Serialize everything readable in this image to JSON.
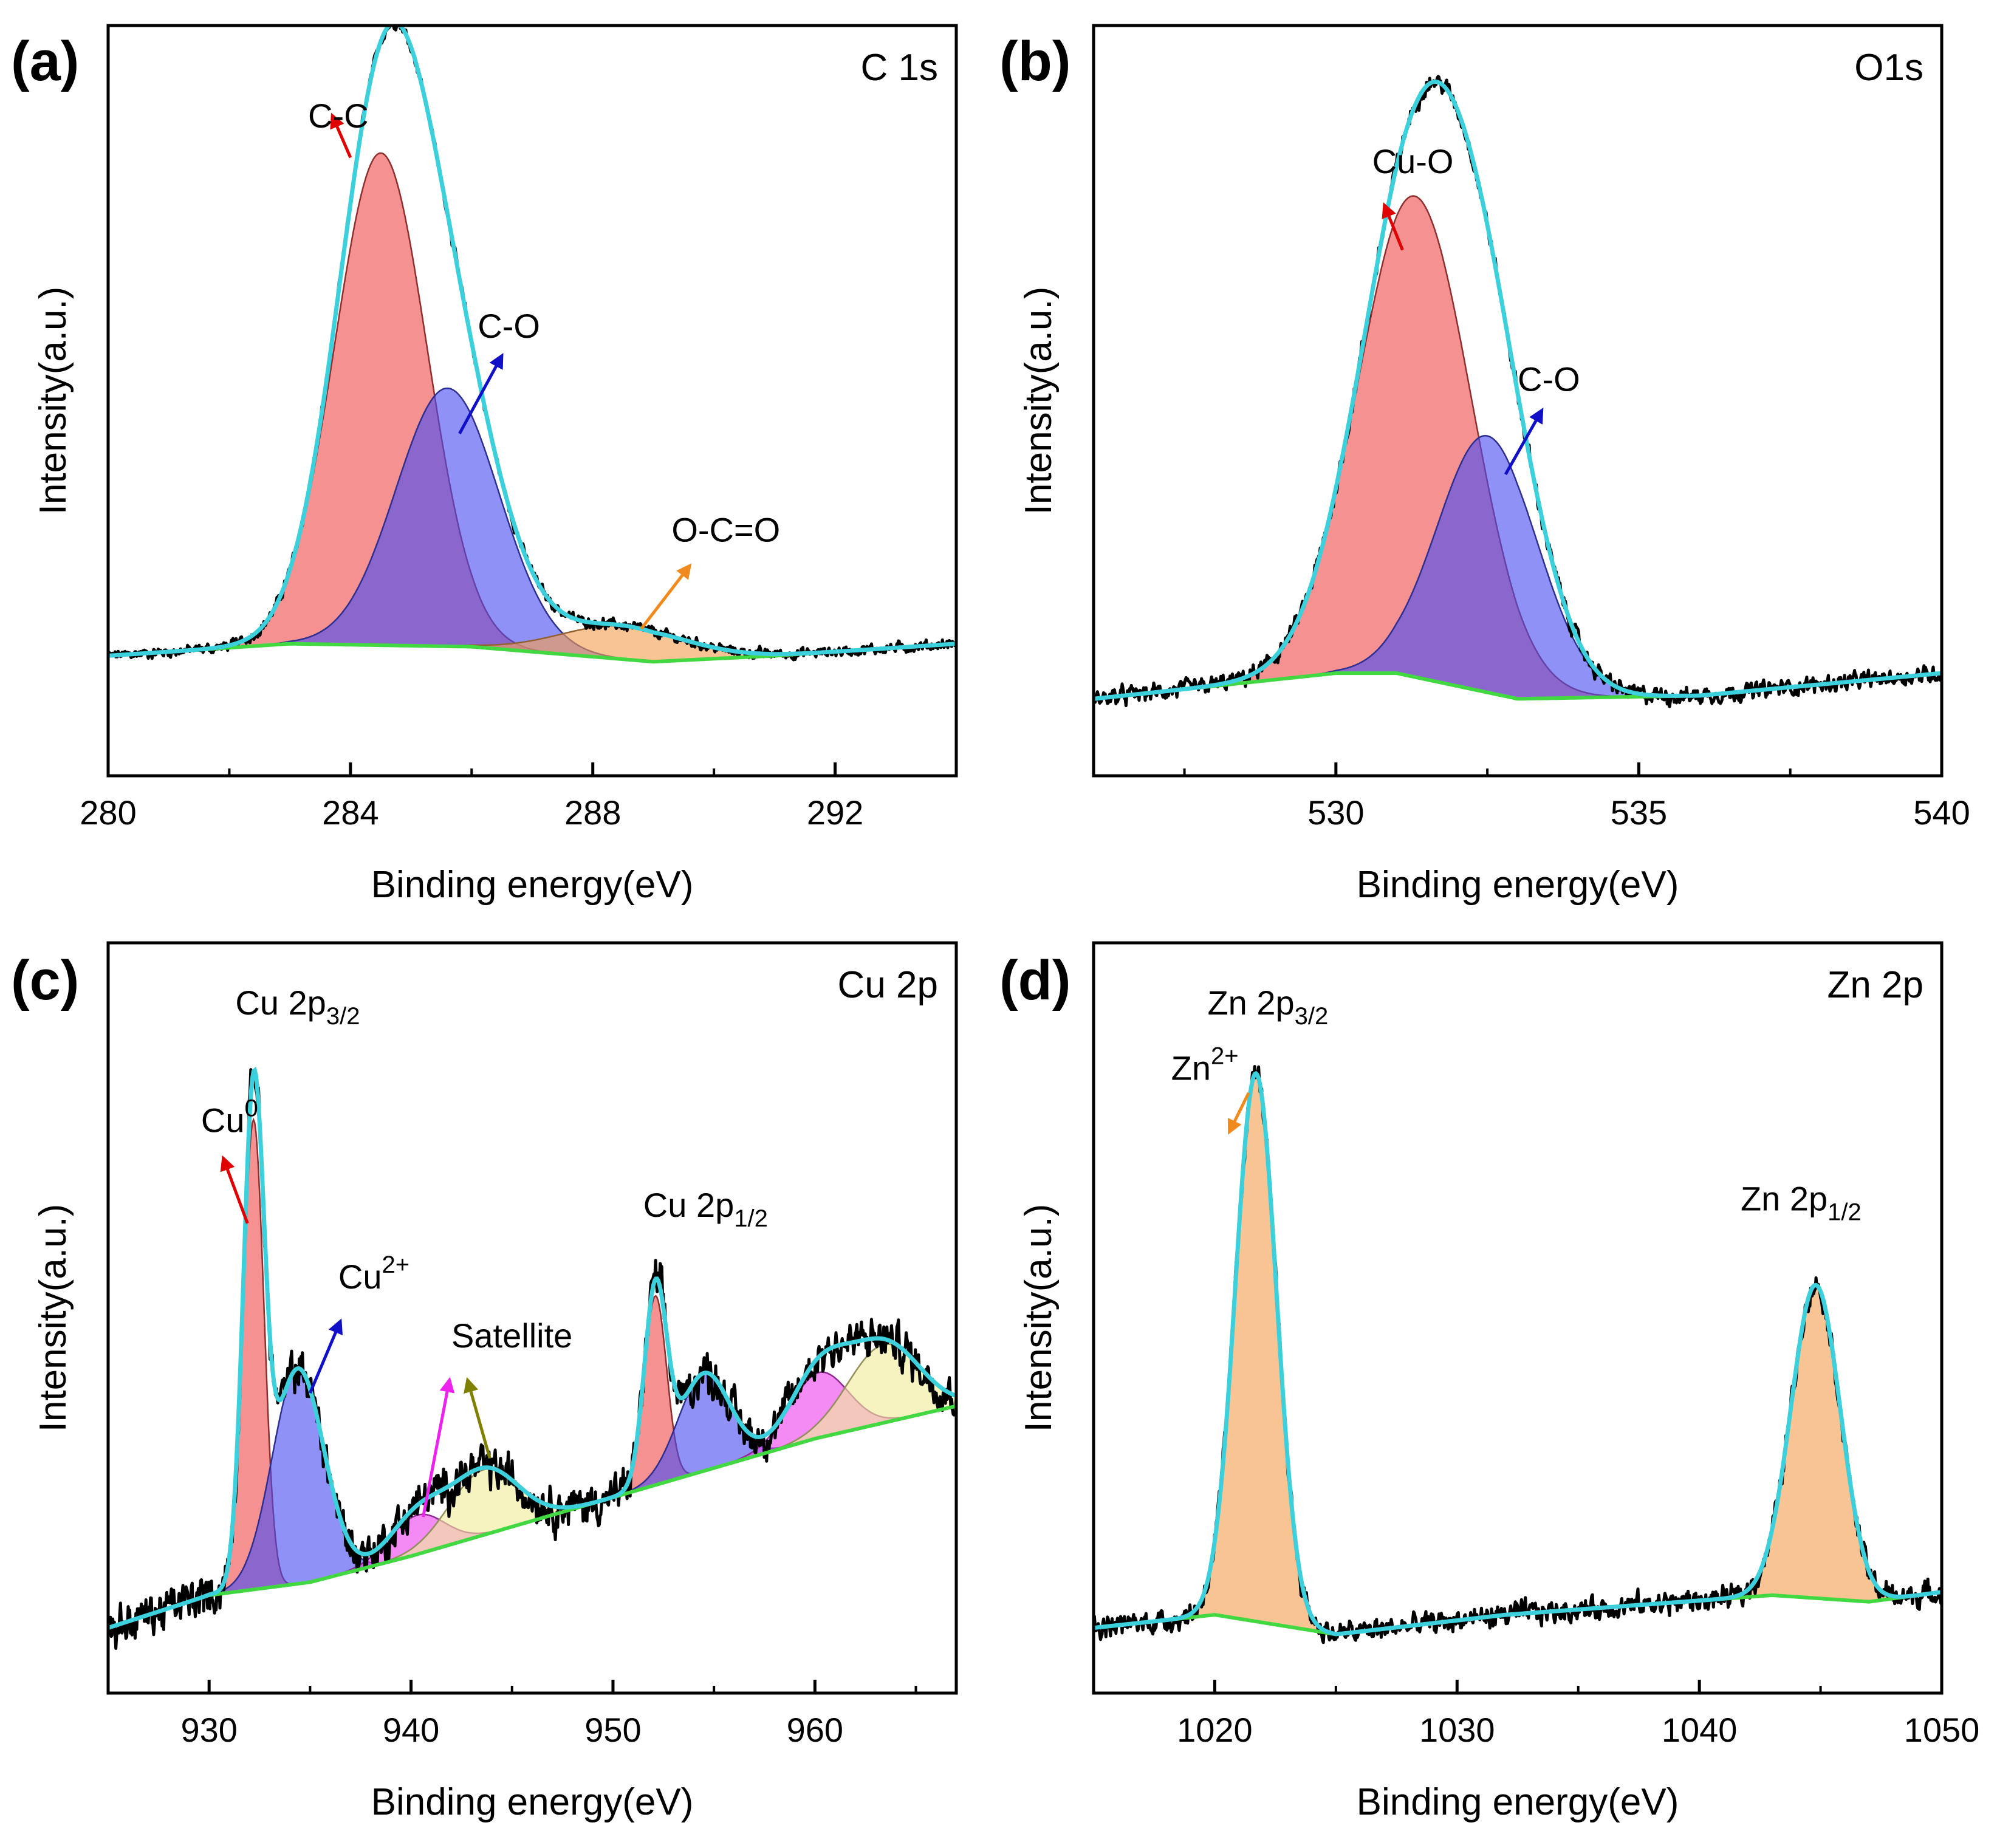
{
  "chart_data": [
    {
      "id": "a",
      "type": "area",
      "panel_label": "(a)",
      "title": "C 1s",
      "xlabel": "Binding energy(eV)",
      "ylabel": "Intensity(a.u.)",
      "xlim": [
        280,
        294
      ],
      "ylim": [
        -0.2,
        1.05
      ],
      "xticks": [
        280,
        284,
        288,
        292
      ],
      "xtick_labels": [
        "280",
        "284",
        "288",
        "292"
      ],
      "minor_xticks": [
        282,
        286,
        290,
        294
      ],
      "background": {
        "x": [
          280,
          283,
          286,
          289,
          291,
          294
        ],
        "y": [
          0.0,
          0.02,
          0.015,
          -0.01,
          0.0,
          0.02
        ]
      },
      "peaks": [
        {
          "name": "C-C",
          "center": 284.5,
          "fwhm": 1.8,
          "height": 0.82,
          "color": "#ef4d4d"
        },
        {
          "name": "C-O",
          "center": 285.6,
          "fwhm": 2.0,
          "height": 0.43,
          "color": "#4a4ef2"
        },
        {
          "name": "O-C=O",
          "center": 288.5,
          "fwhm": 2.4,
          "height": 0.055,
          "color": "#f5a050"
        }
      ],
      "noise": 0.006,
      "annotations": [
        {
          "text": "C-C",
          "color": "#e00000",
          "text_x": 283.3,
          "text_y": 0.88,
          "from_x": 284.0,
          "from_y": 0.83,
          "to_x": 283.7,
          "to_y": 0.9
        },
        {
          "text": "C-O",
          "color": "#1010c8",
          "text_x": 286.1,
          "text_y": 0.53,
          "from_x": 285.8,
          "from_y": 0.37,
          "to_x": 286.5,
          "to_y": 0.5
        },
        {
          "text": "O-C=O",
          "color": "#f08a1c",
          "text_x": 289.3,
          "text_y": 0.19,
          "from_x": 288.8,
          "from_y": 0.045,
          "to_x": 289.6,
          "to_y": 0.15
        }
      ]
    },
    {
      "id": "b",
      "type": "area",
      "panel_label": "(b)",
      "title": "O1s",
      "xlabel": "Binding energy(eV)",
      "ylabel": "Intensity(a.u.)",
      "xlim": [
        526,
        540
      ],
      "ylim": [
        -0.12,
        1.05
      ],
      "xticks": [
        530,
        535,
        540
      ],
      "xtick_labels": [
        "530",
        "535",
        "540"
      ],
      "minor_xticks": [
        527.5,
        532.5,
        537.5
      ],
      "background": {
        "x": [
          526,
          528,
          530,
          531,
          533,
          536,
          540
        ],
        "y": [
          0.0,
          0.02,
          0.04,
          0.04,
          0.0,
          0.005,
          0.04
        ]
      },
      "peaks": [
        {
          "name": "Cu-O",
          "center": 531.3,
          "fwhm": 2.2,
          "height": 0.75,
          "color": "#ef4d4d"
        },
        {
          "name": "C-O",
          "center": 532.5,
          "fwhm": 1.95,
          "height": 0.4,
          "color": "#4a4ef2"
        }
      ],
      "noise": 0.009,
      "annotations": [
        {
          "text": "Cu-O",
          "color": "#e00000",
          "text_x": 530.6,
          "text_y": 0.82,
          "from_x": 531.1,
          "from_y": 0.7,
          "to_x": 530.8,
          "to_y": 0.77
        },
        {
          "text": "C-O",
          "color": "#1010c8",
          "text_x": 533.0,
          "text_y": 0.48,
          "from_x": 532.8,
          "from_y": 0.35,
          "to_x": 533.4,
          "to_y": 0.45
        }
      ]
    },
    {
      "id": "c",
      "type": "area",
      "panel_label": "(c)",
      "title": "Cu 2p",
      "xlabel": "Binding energy(eV)",
      "ylabel": "Intensity(a.u.)",
      "xlim": [
        925,
        967
      ],
      "ylim": [
        -0.1,
        1.05
      ],
      "xticks": [
        930,
        940,
        950,
        960
      ],
      "xtick_labels": [
        "930",
        "940",
        "950",
        "960"
      ],
      "minor_xticks": [
        935,
        945,
        955,
        965
      ],
      "background": {
        "x": [
          925,
          930,
          935,
          940,
          950,
          960,
          967
        ],
        "y": [
          0.0,
          0.05,
          0.07,
          0.11,
          0.2,
          0.29,
          0.34
        ]
      },
      "peaks": [
        {
          "name": "Cu0 (2p3/2)",
          "center": 932.2,
          "fwhm": 1.2,
          "height": 0.72,
          "color": "#ef4d4d"
        },
        {
          "name": "Cu2+ (2p3/2)",
          "center": 934.4,
          "fwhm": 3.0,
          "height": 0.33,
          "color": "#4a4ef2"
        },
        {
          "name": "Satellite 1",
          "center": 940.3,
          "fwhm": 3.2,
          "height": 0.06,
          "color": "#ee44ee"
        },
        {
          "name": "Satellite 2",
          "center": 943.6,
          "fwhm": 4.0,
          "height": 0.1,
          "color": "#f2ec9a"
        },
        {
          "name": "Cu0 (2p1/2)",
          "center": 952.1,
          "fwhm": 1.3,
          "height": 0.29,
          "color": "#ef4d4d"
        },
        {
          "name": "Cu2+ (2p1/2)",
          "center": 954.5,
          "fwhm": 3.0,
          "height": 0.15,
          "color": "#4a4ef2"
        },
        {
          "name": "Satellite 3",
          "center": 960.2,
          "fwhm": 3.4,
          "height": 0.1,
          "color": "#ee44ee"
        },
        {
          "name": "Satellite 4",
          "center": 963.4,
          "fwhm": 4.2,
          "height": 0.12,
          "color": "#f2ec9a"
        }
      ],
      "noise": 0.022,
      "annotations": [
        {
          "text": "Cu",
          "sup": "0",
          "color": "#e00000",
          "text_x": 929.6,
          "text_y": 0.76,
          "from_x": 931.9,
          "from_y": 0.62,
          "to_x": 930.7,
          "to_y": 0.72
        },
        {
          "text": "Cu",
          "sup": "2+",
          "color": "#1010c8",
          "text_x": 936.4,
          "text_y": 0.52,
          "from_x": 935.0,
          "from_y": 0.36,
          "to_x": 936.5,
          "to_y": 0.47
        },
        {
          "text": "Satellite",
          "color": "#000000",
          "text_x": 942.0,
          "text_y": 0.43,
          "from_x": 940.6,
          "from_y": 0.17,
          "to_x": 941.9,
          "to_y": 0.38,
          "arrow_color": "#ee22ee"
        },
        {
          "text": "",
          "color": "#000000",
          "text_x": 0,
          "text_y": 0,
          "from_x": 943.9,
          "from_y": 0.26,
          "to_x": 942.8,
          "to_y": 0.38,
          "arrow_color": "#808000"
        }
      ],
      "peak_groups": [
        {
          "text": "Cu 2p",
          "sub": "3/2",
          "text_x": 931.3,
          "text_y": 0.94
        },
        {
          "text": "Cu 2p",
          "sub": "1/2",
          "text_x": 951.5,
          "text_y": 0.63
        }
      ]
    },
    {
      "id": "d",
      "type": "area",
      "panel_label": "(d)",
      "title": "Zn 2p",
      "xlabel": "Binding energy(eV)",
      "ylabel": "Intensity(a.u.)",
      "xlim": [
        1015,
        1050
      ],
      "ylim": [
        -0.1,
        1.05
      ],
      "xticks": [
        1020,
        1030,
        1040,
        1050
      ],
      "xtick_labels": [
        "1020",
        "1030",
        "1040",
        "1050"
      ],
      "minor_xticks": [
        1025,
        1035,
        1045
      ],
      "background": {
        "x": [
          1015,
          1020,
          1025,
          1032,
          1043,
          1047,
          1050
        ],
        "y": [
          0.0,
          0.02,
          -0.01,
          0.02,
          0.05,
          0.04,
          0.055
        ]
      },
      "peaks": [
        {
          "name": "Zn2+ (2p3/2)",
          "center": 1021.7,
          "fwhm": 2.0,
          "height": 0.84,
          "color": "#f5a050"
        },
        {
          "name": "Zn2+ (2p1/2)",
          "center": 1044.8,
          "fwhm": 2.4,
          "height": 0.48,
          "color": "#f5a050"
        }
      ],
      "noise": 0.012,
      "annotations": [
        {
          "text": "Zn",
          "sup": "2+",
          "color": "#000000",
          "text_x": 1018.2,
          "text_y": 0.84,
          "from_x": 1021.4,
          "from_y": 0.82,
          "to_x": 1020.6,
          "to_y": 0.76,
          "arrow_color": "#f08a1c",
          "reverse": true
        }
      ],
      "peak_groups": [
        {
          "text": "Zn 2p",
          "sub": "3/2",
          "text_x": 1019.7,
          "text_y": 0.94
        },
        {
          "text": "Zn 2p",
          "sub": "1/2",
          "text_x": 1041.7,
          "text_y": 0.64
        }
      ]
    }
  ],
  "colors": {
    "raw": "#000000",
    "envelope": "#3bd0dc",
    "background_line": "#41d842"
  }
}
